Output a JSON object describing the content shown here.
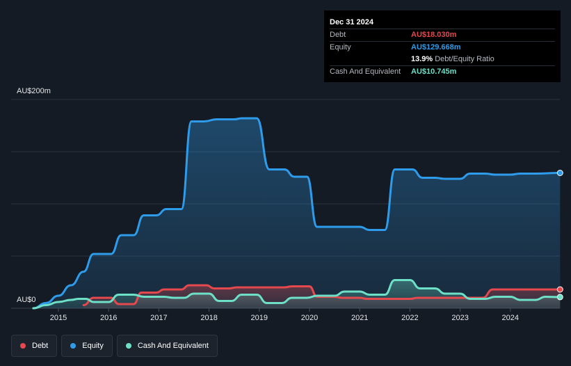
{
  "tooltip": {
    "date": "Dec 31 2024",
    "debt_label": "Debt",
    "debt_value": "AU$18.030m",
    "equity_label": "Equity",
    "equity_value": "AU$129.668m",
    "ratio_value": "13.9%",
    "ratio_label": "Debt/Equity Ratio",
    "cash_label": "Cash And Equivalent",
    "cash_value": "AU$10.745m"
  },
  "axis": {
    "y_top_label": "AU$200m",
    "y_bottom_label": "AU$0"
  },
  "legend": {
    "debt": "Debt",
    "equity": "Equity",
    "cash": "Cash And Equivalent"
  },
  "colors": {
    "background": "#151b24",
    "debt": "#e5484d",
    "equity": "#2f9ceb",
    "cash": "#6ee0c8",
    "grid": "#2c333d"
  },
  "chart_data": {
    "type": "area",
    "ylim": [
      0,
      200
    ],
    "x_ticks": [
      "2015",
      "2016",
      "2017",
      "2018",
      "2019",
      "2020",
      "2021",
      "2022",
      "2023",
      "2024"
    ],
    "grid": true,
    "series": [
      {
        "name": "Equity",
        "color": "#2f9ceb",
        "points": [
          [
            2014.5,
            0
          ],
          [
            2014.75,
            5
          ],
          [
            2015.0,
            12
          ],
          [
            2015.25,
            22
          ],
          [
            2015.5,
            35
          ],
          [
            2015.7,
            52
          ],
          [
            2015.8,
            52
          ],
          [
            2016.05,
            52
          ],
          [
            2016.25,
            70
          ],
          [
            2016.5,
            70
          ],
          [
            2016.7,
            89
          ],
          [
            2016.95,
            89
          ],
          [
            2017.15,
            95
          ],
          [
            2017.45,
            95
          ],
          [
            2017.65,
            179
          ],
          [
            2017.9,
            179
          ],
          [
            2018.15,
            181
          ],
          [
            2018.5,
            181
          ],
          [
            2018.65,
            182
          ],
          [
            2018.95,
            182
          ],
          [
            2019.2,
            133
          ],
          [
            2019.5,
            133
          ],
          [
            2019.7,
            126
          ],
          [
            2019.95,
            126
          ],
          [
            2020.15,
            78
          ],
          [
            2020.5,
            78
          ],
          [
            2021.0,
            78
          ],
          [
            2021.2,
            75
          ],
          [
            2021.5,
            75
          ],
          [
            2021.7,
            133
          ],
          [
            2022.05,
            133
          ],
          [
            2022.25,
            125
          ],
          [
            2022.5,
            125
          ],
          [
            2022.7,
            124
          ],
          [
            2023.0,
            124
          ],
          [
            2023.2,
            129
          ],
          [
            2023.5,
            129
          ],
          [
            2023.7,
            128
          ],
          [
            2024.0,
            128
          ],
          [
            2024.2,
            129
          ],
          [
            2024.5,
            129
          ],
          [
            2024.99,
            129.668
          ]
        ]
      },
      {
        "name": "Debt",
        "color": "#e5484d",
        "points": [
          [
            2015.5,
            3
          ],
          [
            2015.7,
            10
          ],
          [
            2016.05,
            10
          ],
          [
            2016.2,
            4
          ],
          [
            2016.5,
            4
          ],
          [
            2016.65,
            15
          ],
          [
            2016.95,
            15
          ],
          [
            2017.1,
            18
          ],
          [
            2017.45,
            18
          ],
          [
            2017.6,
            22
          ],
          [
            2017.95,
            22
          ],
          [
            2018.1,
            19
          ],
          [
            2018.4,
            19
          ],
          [
            2018.55,
            20
          ],
          [
            2019.5,
            20
          ],
          [
            2019.65,
            21
          ],
          [
            2020.0,
            21
          ],
          [
            2020.15,
            11
          ],
          [
            2020.5,
            11
          ],
          [
            2020.65,
            10
          ],
          [
            2021.0,
            10
          ],
          [
            2021.15,
            9
          ],
          [
            2022.0,
            9
          ],
          [
            2022.15,
            10
          ],
          [
            2023.45,
            10
          ],
          [
            2023.65,
            18
          ],
          [
            2024.55,
            18
          ],
          [
            2024.99,
            18.03
          ]
        ]
      },
      {
        "name": "Cash And Equivalent",
        "color": "#6ee0c8",
        "points": [
          [
            2014.5,
            0
          ],
          [
            2014.75,
            3
          ],
          [
            2015.0,
            6
          ],
          [
            2015.25,
            8
          ],
          [
            2015.4,
            9
          ],
          [
            2015.55,
            9
          ],
          [
            2015.7,
            6
          ],
          [
            2016.0,
            6
          ],
          [
            2016.2,
            13
          ],
          [
            2016.5,
            13
          ],
          [
            2016.7,
            11
          ],
          [
            2017.1,
            11
          ],
          [
            2017.3,
            10
          ],
          [
            2017.5,
            10
          ],
          [
            2017.7,
            14
          ],
          [
            2018.0,
            14
          ],
          [
            2018.2,
            7
          ],
          [
            2018.45,
            7
          ],
          [
            2018.65,
            13
          ],
          [
            2018.95,
            13
          ],
          [
            2019.15,
            5
          ],
          [
            2019.45,
            5
          ],
          [
            2019.65,
            10
          ],
          [
            2019.95,
            10
          ],
          [
            2020.15,
            12
          ],
          [
            2020.5,
            12
          ],
          [
            2020.7,
            16
          ],
          [
            2021.0,
            16
          ],
          [
            2021.2,
            13
          ],
          [
            2021.5,
            13
          ],
          [
            2021.7,
            27
          ],
          [
            2022.0,
            27
          ],
          [
            2022.2,
            19
          ],
          [
            2022.5,
            19
          ],
          [
            2022.7,
            14
          ],
          [
            2023.0,
            14
          ],
          [
            2023.2,
            9
          ],
          [
            2023.5,
            9
          ],
          [
            2023.7,
            11
          ],
          [
            2024.0,
            11
          ],
          [
            2024.2,
            8
          ],
          [
            2024.5,
            8
          ],
          [
            2024.7,
            11
          ],
          [
            2024.99,
            10.745
          ]
        ]
      }
    ]
  }
}
